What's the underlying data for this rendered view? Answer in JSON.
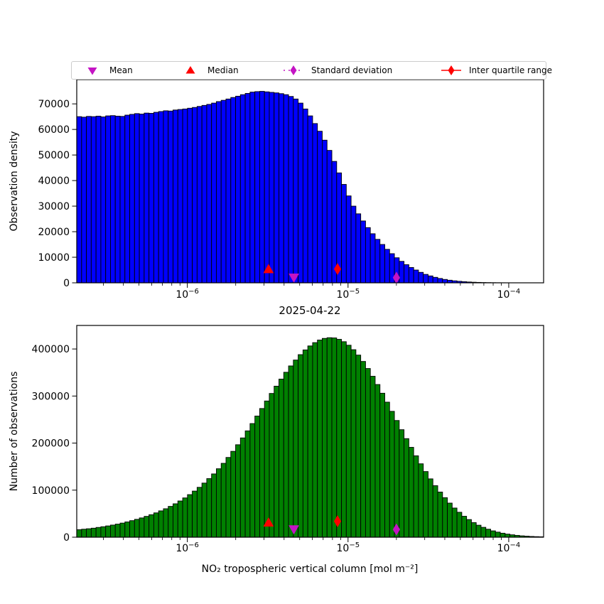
{
  "figure": {
    "title": "2025-04-22",
    "xlabel": "NO₂ tropospheric vertical column [mol m⁻²]",
    "top_ylabel": "Observation density",
    "bottom_ylabel": "Number of observations",
    "background_color": "#ffffff"
  },
  "legend": {
    "position": "top-center-outside",
    "items": [
      {
        "label": "Mean",
        "marker": "triangle-down",
        "line": "none",
        "color": "#c414c4"
      },
      {
        "label": "Median",
        "marker": "triangle-up",
        "line": "none",
        "color": "#ff0000"
      },
      {
        "label": "Standard deviation",
        "marker": "thin-diamond",
        "line": "dotted",
        "color": "#c414c4"
      },
      {
        "label": "Inter quartile range",
        "marker": "thin-diamond",
        "line": "solid",
        "color": "#ff0000"
      }
    ]
  },
  "chart_data": [
    {
      "type": "bar",
      "subplot": "top",
      "title": "2025-04-22",
      "xlabel": "",
      "ylabel": "Observation density",
      "xscale": "log",
      "grid": false,
      "xlim": [
        2.05e-07,
        0.0001648
      ],
      "ylim": [
        0,
        79500
      ],
      "bar_color": "#0000ff",
      "bar_edge_color": "#000000",
      "yticks": [
        0,
        10000,
        20000,
        30000,
        40000,
        50000,
        60000,
        70000
      ],
      "ytick_labels": [
        "0",
        "10000",
        "20000",
        "30000",
        "40000",
        "50000",
        "60000",
        "70000"
      ],
      "xticks": [
        {
          "value": 1e-06,
          "base": "10",
          "sup": "−6"
        },
        {
          "value": 1e-05,
          "base": "10",
          "sup": "−5"
        },
        {
          "value": 0.0001,
          "base": "10",
          "sup": "−4"
        }
      ],
      "bins_log10": {
        "start": -6.688,
        "end": -3.783,
        "count": 97
      },
      "values": [
        65000,
        64800,
        65100,
        65000,
        65200,
        64900,
        65300,
        65400,
        65200,
        65100,
        65600,
        65900,
        66200,
        66000,
        66400,
        66300,
        66700,
        67000,
        67300,
        67200,
        67600,
        67800,
        68000,
        68300,
        68600,
        69000,
        69400,
        69800,
        70300,
        70900,
        71400,
        71900,
        72500,
        73000,
        73600,
        74100,
        74600,
        74800,
        74900,
        74700,
        74500,
        74300,
        74000,
        73600,
        72900,
        71900,
        70300,
        68000,
        65300,
        62300,
        59300,
        55800,
        51800,
        47500,
        43000,
        38500,
        34000,
        30000,
        27000,
        24200,
        21600,
        19200,
        17000,
        15000,
        13100,
        11400,
        9800,
        8400,
        7100,
        6000,
        5000,
        4100,
        3300,
        2700,
        2150,
        1700,
        1320,
        1020,
        780,
        590,
        440,
        320,
        230,
        165,
        115,
        80,
        55,
        38,
        26,
        17,
        11,
        7,
        5,
        3,
        2,
        1,
        0
      ],
      "markers": [
        {
          "name": "mean",
          "shape": "triangle-down",
          "color": "#c414c4",
          "x": 4.6e-06,
          "y": 2100
        },
        {
          "name": "median",
          "shape": "triangle-up",
          "color": "#ff0000",
          "x": 3.2e-06,
          "y": 5300
        },
        {
          "name": "std",
          "shape": "thin-diamond",
          "color": "#c414c4",
          "x": 2e-05,
          "y": 2000
        },
        {
          "name": "iqr",
          "shape": "thin-diamond",
          "color": "#ff0000",
          "x": 8.6e-06,
          "y": 5400
        }
      ]
    },
    {
      "type": "bar",
      "subplot": "bottom",
      "title": "",
      "xlabel": "NO₂ tropospheric vertical column [mol m⁻²]",
      "ylabel": "Number of observations",
      "xscale": "log",
      "grid": false,
      "xlim": [
        2.05e-07,
        0.0001648
      ],
      "ylim": [
        0,
        450000
      ],
      "bar_color": "#008000",
      "bar_edge_color": "#000000",
      "yticks": [
        0,
        100000,
        200000,
        300000,
        400000
      ],
      "ytick_labels": [
        "0",
        "100000",
        "200000",
        "300000",
        "400000"
      ],
      "xticks": [
        {
          "value": 1e-06,
          "base": "10",
          "sup": "−6"
        },
        {
          "value": 1e-05,
          "base": "10",
          "sup": "−5"
        },
        {
          "value": 0.0001,
          "base": "10",
          "sup": "−4"
        }
      ],
      "bins_log10": {
        "start": -6.688,
        "end": -3.783,
        "count": 97
      },
      "values": [
        16000,
        17000,
        18000,
        19200,
        20800,
        22300,
        24000,
        25800,
        27800,
        30000,
        32500,
        35200,
        38000,
        41000,
        44300,
        47800,
        51700,
        56000,
        60500,
        65500,
        71000,
        77000,
        83500,
        90500,
        98000,
        106000,
        115000,
        124500,
        134500,
        145500,
        157000,
        169500,
        182500,
        196500,
        211000,
        226000,
        241500,
        257500,
        273500,
        289500,
        305500,
        321000,
        336000,
        350500,
        364000,
        376500,
        388000,
        398000,
        406500,
        413500,
        419000,
        422500,
        424000,
        423500,
        420500,
        415500,
        408000,
        398500,
        387000,
        373500,
        358500,
        342000,
        324500,
        306000,
        287000,
        267500,
        248000,
        228500,
        209500,
        191000,
        173000,
        156000,
        139500,
        124000,
        109500,
        96000,
        84000,
        72500,
        62000,
        53000,
        44500,
        37500,
        31000,
        25500,
        21000,
        17000,
        13500,
        10800,
        8500,
        6600,
        5100,
        3900,
        2900,
        2200,
        1600,
        1200,
        900
      ],
      "markers": [
        {
          "name": "mean",
          "shape": "triangle-down",
          "color": "#c414c4",
          "x": 4.6e-06,
          "y": 17000
        },
        {
          "name": "median",
          "shape": "triangle-up",
          "color": "#ff0000",
          "x": 3.2e-06,
          "y": 31000
        },
        {
          "name": "std",
          "shape": "thin-diamond",
          "color": "#c414c4",
          "x": 2e-05,
          "y": 16500
        },
        {
          "name": "iqr",
          "shape": "thin-diamond",
          "color": "#ff0000",
          "x": 8.6e-06,
          "y": 34000
        }
      ]
    }
  ]
}
